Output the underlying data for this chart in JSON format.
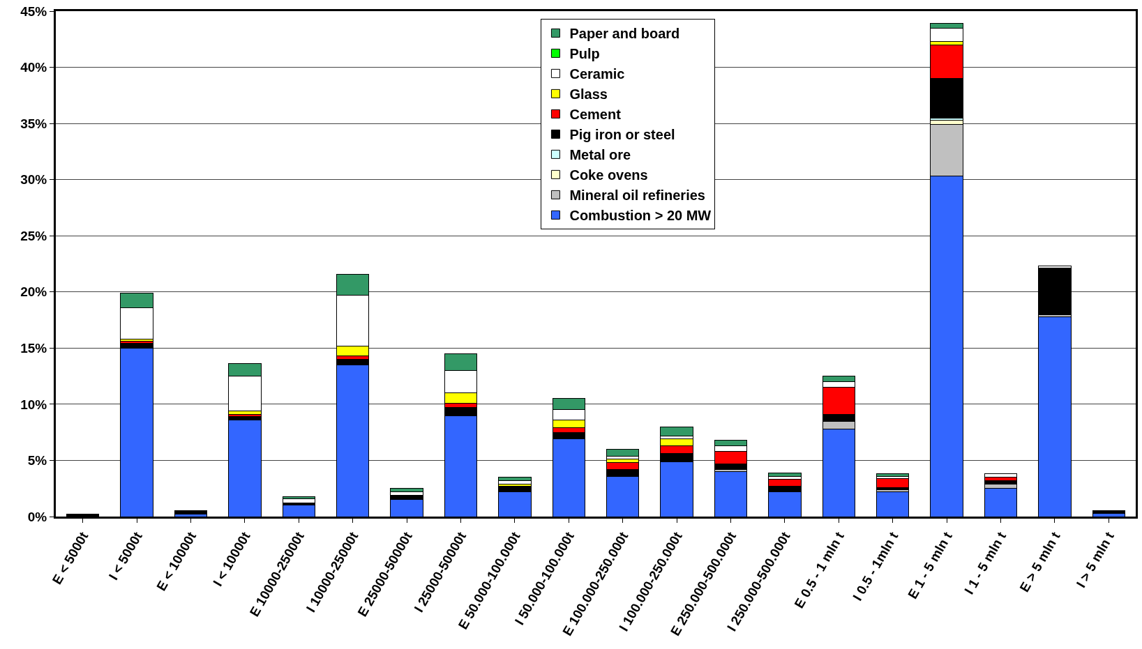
{
  "chart_data": {
    "type": "bar",
    "stacked": true,
    "grid": "y",
    "legend": "top",
    "categories": [
      "E < 5000t",
      "I < 5000t",
      "E < 10000t",
      "I < 10000t",
      "E 10000-25000t",
      "I 10000-25000t",
      "E 25000-50000t",
      "I 25000-50000t",
      "E 50.000-100.000t",
      "I 50.000-100.000t",
      "E 100.000-250.000t",
      "I 100.000-250.000t",
      "E 250.000-500.000t",
      "I 250.000-500.000t",
      "E 0.5 - 1 mln t",
      "I 0.5 - 1mln t",
      "E 1 - 5 mln t",
      "I 1 - 5 mln t",
      "E > 5 mln t",
      "I > 5 mln t"
    ],
    "ylim": [
      0,
      45
    ],
    "yticks": [
      {
        "value": 0,
        "label": "0%"
      },
      {
        "value": 5,
        "label": "5%"
      },
      {
        "value": 10,
        "label": "10%"
      },
      {
        "value": 15,
        "label": "15%"
      },
      {
        "value": 20,
        "label": "20%"
      },
      {
        "value": 25,
        "label": "25%"
      },
      {
        "value": 30,
        "label": "30%"
      },
      {
        "value": 35,
        "label": "35%"
      },
      {
        "value": 40,
        "label": "40%"
      },
      {
        "value": 45,
        "label": "45%"
      }
    ],
    "series": [
      {
        "name": "Combustion > 20 MW",
        "color": "#3366ff",
        "values": [
          null,
          15.0,
          0.2,
          8.6,
          1.0,
          13.5,
          1.5,
          9.0,
          2.2,
          6.9,
          3.6,
          4.9,
          4.0,
          2.2,
          7.8,
          2.2,
          30.3,
          2.5,
          17.8,
          0.3
        ]
      },
      {
        "name": "Mineral oil refineries",
        "color": "#c0c0c0",
        "values": [
          null,
          null,
          null,
          null,
          null,
          null,
          null,
          null,
          null,
          null,
          null,
          null,
          0.2,
          null,
          0.7,
          0.2,
          4.6,
          0.4,
          0.2,
          null
        ]
      },
      {
        "name": "Coke ovens",
        "color": "#ffffcc",
        "values": [
          null,
          null,
          null,
          null,
          null,
          null,
          null,
          null,
          null,
          null,
          null,
          null,
          null,
          null,
          null,
          null,
          0.4,
          null,
          null,
          null
        ]
      },
      {
        "name": "Metal ore",
        "color": "#ccffff",
        "values": [
          null,
          null,
          null,
          null,
          null,
          null,
          null,
          null,
          null,
          null,
          null,
          null,
          null,
          null,
          null,
          null,
          0.2,
          null,
          null,
          null
        ]
      },
      {
        "name": "Pig iron or steel",
        "color": "#000000",
        "values": [
          0.2,
          0.4,
          0.3,
          0.3,
          0.2,
          0.5,
          0.4,
          0.7,
          0.5,
          0.6,
          0.6,
          0.7,
          0.5,
          0.5,
          0.6,
          0.2,
          3.5,
          0.3,
          4.1,
          0.2
        ]
      },
      {
        "name": "Cement",
        "color": "#ff0000",
        "values": [
          null,
          0.2,
          null,
          0.2,
          null,
          0.3,
          null,
          0.4,
          null,
          0.4,
          0.6,
          0.7,
          1.1,
          0.6,
          2.4,
          0.8,
          3.0,
          0.3,
          null,
          null
        ]
      },
      {
        "name": "Glass",
        "color": "#ffff00",
        "values": [
          null,
          0.2,
          null,
          0.3,
          null,
          0.9,
          null,
          0.9,
          0.2,
          0.7,
          0.3,
          0.6,
          null,
          null,
          null,
          null,
          0.3,
          null,
          null,
          null
        ]
      },
      {
        "name": "Ceramic",
        "color": "#ffffff",
        "values": [
          null,
          2.8,
          null,
          3.1,
          0.4,
          4.5,
          0.3,
          2.0,
          0.3,
          0.9,
          0.3,
          0.3,
          0.5,
          0.3,
          0.5,
          0.2,
          1.2,
          0.3,
          0.2,
          null
        ]
      },
      {
        "name": "Pulp",
        "color": "#00ff00",
        "values": [
          null,
          null,
          null,
          null,
          null,
          null,
          null,
          null,
          null,
          null,
          null,
          null,
          null,
          null,
          null,
          null,
          null,
          null,
          null,
          null
        ]
      },
      {
        "name": "Paper and board",
        "color": "#339966",
        "values": [
          null,
          1.3,
          null,
          1.1,
          0.2,
          1.9,
          0.3,
          1.5,
          0.3,
          1.0,
          0.6,
          0.8,
          0.5,
          0.3,
          0.5,
          0.2,
          0.4,
          null,
          null,
          null
        ]
      }
    ]
  }
}
